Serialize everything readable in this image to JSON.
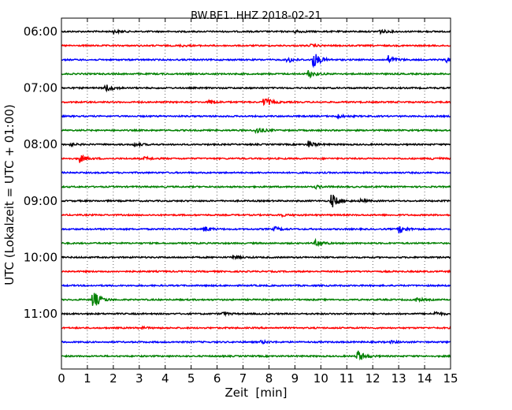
{
  "chart_data": {
    "type": "line",
    "title": "BW.BE1..HHZ 2018-02-21",
    "xlabel": "Zeit  [min]",
    "ylabel": "UTC (Lokalzeit = UTC + 01:00)",
    "xlim": [
      0,
      15
    ],
    "x_ticks": [
      "0",
      "1",
      "2",
      "3",
      "4",
      "5",
      "6",
      "7",
      "8",
      "9",
      "10",
      "11",
      "12",
      "13",
      "14",
      "15"
    ],
    "y_ticks": [
      "06:00",
      "07:00",
      "08:00",
      "09:00",
      "10:00",
      "11:00"
    ],
    "grid": {
      "x": "dotted",
      "y": "off"
    },
    "trace_colors": [
      "#000000",
      "#ff0000",
      "#0000ff",
      "#008000"
    ],
    "traces": [
      {
        "start": "06:00",
        "color": "#000000",
        "events": [
          {
            "t": 2.0,
            "amp": 0.2
          },
          {
            "t": 9.0,
            "amp": 0.2
          },
          {
            "t": 12.2,
            "amp": 0.35
          }
        ]
      },
      {
        "start": "06:15",
        "color": "#ff0000",
        "events": [
          {
            "t": 4.6,
            "amp": 0.12
          },
          {
            "t": 9.6,
            "amp": 0.15
          }
        ]
      },
      {
        "start": "06:30",
        "color": "#0000ff",
        "events": [
          {
            "t": 8.7,
            "amp": 0.45
          },
          {
            "t": 9.7,
            "amp": 1.2
          },
          {
            "t": 12.6,
            "amp": 0.55
          },
          {
            "t": 14.8,
            "amp": 0.4
          }
        ]
      },
      {
        "start": "06:45",
        "color": "#008000",
        "events": [
          {
            "t": 9.5,
            "amp": 0.6
          }
        ]
      },
      {
        "start": "07:00",
        "color": "#000000",
        "events": [
          {
            "t": 1.7,
            "amp": 0.6
          }
        ]
      },
      {
        "start": "07:15",
        "color": "#ff0000",
        "events": [
          {
            "t": 5.7,
            "amp": 0.3
          },
          {
            "t": 7.8,
            "amp": 0.75
          }
        ]
      },
      {
        "start": "07:30",
        "color": "#0000ff",
        "events": [
          {
            "t": 10.6,
            "amp": 0.3
          }
        ]
      },
      {
        "start": "07:45",
        "color": "#008000",
        "events": [
          {
            "t": 7.5,
            "amp": 0.55
          }
        ]
      },
      {
        "start": "08:00",
        "color": "#000000",
        "events": [
          {
            "t": 0.3,
            "amp": 0.2
          },
          {
            "t": 2.8,
            "amp": 0.25
          },
          {
            "t": 9.5,
            "amp": 0.55
          }
        ]
      },
      {
        "start": "08:15",
        "color": "#ff0000",
        "events": [
          {
            "t": 0.7,
            "amp": 0.55
          },
          {
            "t": 3.2,
            "amp": 0.2
          },
          {
            "t": 14.3,
            "amp": 0.2
          }
        ]
      },
      {
        "start": "08:30",
        "color": "#0000ff",
        "events": []
      },
      {
        "start": "08:45",
        "color": "#008000",
        "events": [
          {
            "t": 9.8,
            "amp": 0.2
          }
        ]
      },
      {
        "start": "09:00",
        "color": "#000000",
        "events": [
          {
            "t": 10.4,
            "amp": 1.1
          },
          {
            "t": 11.5,
            "amp": 0.2
          }
        ]
      },
      {
        "start": "09:15",
        "color": "#ff0000",
        "events": [
          {
            "t": 8.4,
            "amp": 0.2
          }
        ]
      },
      {
        "start": "09:30",
        "color": "#0000ff",
        "events": [
          {
            "t": 5.5,
            "amp": 0.4
          },
          {
            "t": 8.2,
            "amp": 0.3
          },
          {
            "t": 13.0,
            "amp": 0.6
          }
        ]
      },
      {
        "start": "09:45",
        "color": "#008000",
        "events": [
          {
            "t": 9.8,
            "amp": 0.5
          }
        ]
      },
      {
        "start": "10:00",
        "color": "#000000",
        "events": [
          {
            "t": 6.6,
            "amp": 0.25
          }
        ]
      },
      {
        "start": "10:15",
        "color": "#ff0000",
        "events": []
      },
      {
        "start": "10:30",
        "color": "#0000ff",
        "events": []
      },
      {
        "start": "10:45",
        "color": "#008000",
        "events": [
          {
            "t": 1.2,
            "amp": 1.4
          },
          {
            "t": 13.6,
            "amp": 0.3
          }
        ]
      },
      {
        "start": "11:00",
        "color": "#000000",
        "events": [
          {
            "t": 6.2,
            "amp": 0.2
          },
          {
            "t": 14.4,
            "amp": 0.3
          }
        ]
      },
      {
        "start": "11:15",
        "color": "#ff0000",
        "events": [
          {
            "t": 3.0,
            "amp": 0.2
          }
        ]
      },
      {
        "start": "11:30",
        "color": "#0000ff",
        "events": [
          {
            "t": 7.7,
            "amp": 0.2
          },
          {
            "t": 12.7,
            "amp": 0.15
          }
        ]
      },
      {
        "start": "11:45",
        "color": "#008000",
        "events": [
          {
            "t": 11.4,
            "amp": 0.9
          }
        ]
      }
    ]
  }
}
